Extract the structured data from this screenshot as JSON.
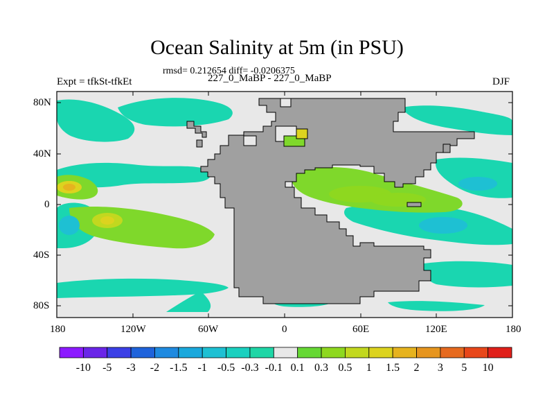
{
  "title": "Ocean Salinity at 5m (in PSU)",
  "stats": "rmsd= 0.212654  diff= -0.0206375",
  "left_label": "Expt = tfkSt-tfkEt",
  "center_label": "227_0_MaBP - 227_0_MaBP",
  "right_label": "DJF",
  "y_ticks": [
    "80N",
    "40N",
    "0",
    "40S",
    "80S"
  ],
  "x_ticks": [
    "180",
    "120W",
    "60W",
    "0",
    "60E",
    "120E",
    "180"
  ],
  "colorbar": {
    "labels": [
      "-10",
      "-5",
      "-3",
      "-2",
      "-1.5",
      "-1",
      "-0.5",
      "-0.3",
      "-0.1",
      "0.1",
      "0.3",
      "0.5",
      "1",
      "1.5",
      "2",
      "3",
      "5",
      "10"
    ],
    "colors": [
      "#8c1aff",
      "#6a25e8",
      "#3b3fe6",
      "#1f63db",
      "#1f8ae0",
      "#1aa8dc",
      "#1ec0d3",
      "#1ad0bf",
      "#1fd6a6",
      "#e8e8e8",
      "#66d834",
      "#8ed81f",
      "#c2d81f",
      "#dcd31f",
      "#e6b31f",
      "#e6951f",
      "#e66a1f",
      "#e8471a",
      "#e0201a"
    ]
  },
  "colors": {
    "land": "#a0a0a0",
    "near_zero": "#e8e8e8",
    "neg": "#1ad6b0",
    "pos": "#7fd82b"
  }
}
